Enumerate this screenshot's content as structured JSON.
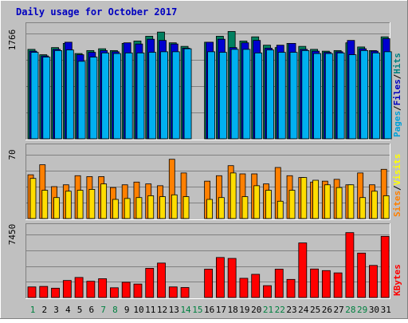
{
  "chart_data": {
    "type": "bar",
    "title": "Daily usage for October 2017",
    "categories": [
      "1",
      "2",
      "3",
      "4",
      "5",
      "6",
      "7",
      "8",
      "9",
      "10",
      "11",
      "12",
      "13",
      "14",
      "15",
      "16",
      "17",
      "18",
      "19",
      "20",
      "21",
      "22",
      "23",
      "24",
      "25",
      "26",
      "27",
      "28",
      "29",
      "30",
      "31"
    ],
    "weekend_days": [
      "1",
      "7",
      "8",
      "14",
      "15",
      "21",
      "22",
      "28",
      "29"
    ],
    "panels": [
      {
        "name": "hits-panel",
        "ymax_label": "1766",
        "ylim": [
          0,
          1766
        ],
        "legend": [
          "Pages",
          "/",
          "Files",
          "/",
          "Hits"
        ],
        "legend_colors": [
          "#00a0d8",
          "#000000",
          "#0000c0",
          "#000000",
          "#008080"
        ],
        "series": [
          {
            "name": "Hits",
            "color": "#008060",
            "values": [
              1500,
              1410,
              1530,
              1600,
              1430,
              1480,
              1510,
              1480,
              1600,
              1640,
              1720,
              1790,
              1610,
              1550,
              0,
              1620,
              1720,
              1800,
              1640,
              1710,
              1570,
              1530,
              1600,
              1550,
              1500,
              1470,
              1480,
              1610,
              1540,
              1480,
              1710
            ]
          },
          {
            "name": "Files",
            "color": "#0000d0",
            "values": [
              1470,
              1390,
              1500,
              1620,
              1410,
              1450,
              1480,
              1460,
              1610,
              1590,
              1670,
              1650,
              1590,
              1520,
              0,
              1620,
              1670,
              1530,
              1610,
              1650,
              1520,
              1570,
              1600,
              1500,
              1470,
              1450,
              1460,
              1650,
              1510,
              1470,
              1680
            ]
          },
          {
            "name": "Pages",
            "color": "#00b0f0",
            "values": [
              1450,
              1370,
              1480,
              1490,
              1300,
              1370,
              1440,
              1430,
              1440,
              1440,
              1450,
              1460,
              1460,
              1510,
              0,
              1460,
              1450,
              1500,
              1500,
              1440,
              1490,
              1450,
              1450,
              1480,
              1430,
              1430,
              1440,
              1410,
              1480,
              1440,
              1460
            ]
          }
        ]
      },
      {
        "name": "visits-panel",
        "ymax_label": "70",
        "ylim": [
          0,
          70
        ],
        "legend": [
          "Sites",
          "/",
          "Visits"
        ],
        "legend_colors": [
          "#ff8000",
          "#000000",
          "#ffff00"
        ],
        "series": [
          {
            "name": "Visits",
            "color": "#ff8000",
            "values": [
              48,
              59,
              35,
              37,
              47,
              46,
              46,
              34,
              37,
              40,
              38,
              36,
              65,
              50,
              0,
              41,
              47,
              58,
              49,
              49,
              38,
              56,
              47,
              45,
              40,
              41,
              43,
              37,
              50,
              37,
              54
            ]
          },
          {
            "name": "Sites",
            "color": "#ffdd00",
            "values": [
              44,
              31,
              23,
              30,
              31,
              32,
              38,
              21,
              22,
              23,
              25,
              24,
              26,
              24,
              0,
              21,
              23,
              50,
              24,
              36,
              31,
              19,
              31,
              45,
              42,
              37,
              34,
              37,
              23,
              30,
              25
            ]
          }
        ]
      },
      {
        "name": "kbytes-panel",
        "ymax_label": "7450",
        "ylim": [
          0,
          7450
        ],
        "legend": [
          "KBytes"
        ],
        "legend_colors": [
          "#ff0000"
        ],
        "series": [
          {
            "name": "KBytes",
            "color": "#ff0000",
            "values": [
              1250,
              1310,
              1100,
              2010,
              2370,
              1920,
              2220,
              1150,
              1800,
              1590,
              3450,
              4070,
              1250,
              1180,
              0,
              3350,
              4730,
              4620,
              2270,
              2740,
              1400,
              3350,
              2140,
              6450,
              3370,
              3180,
              2910,
              7670,
              5250,
              3790,
              7230
            ]
          }
        ]
      }
    ]
  }
}
